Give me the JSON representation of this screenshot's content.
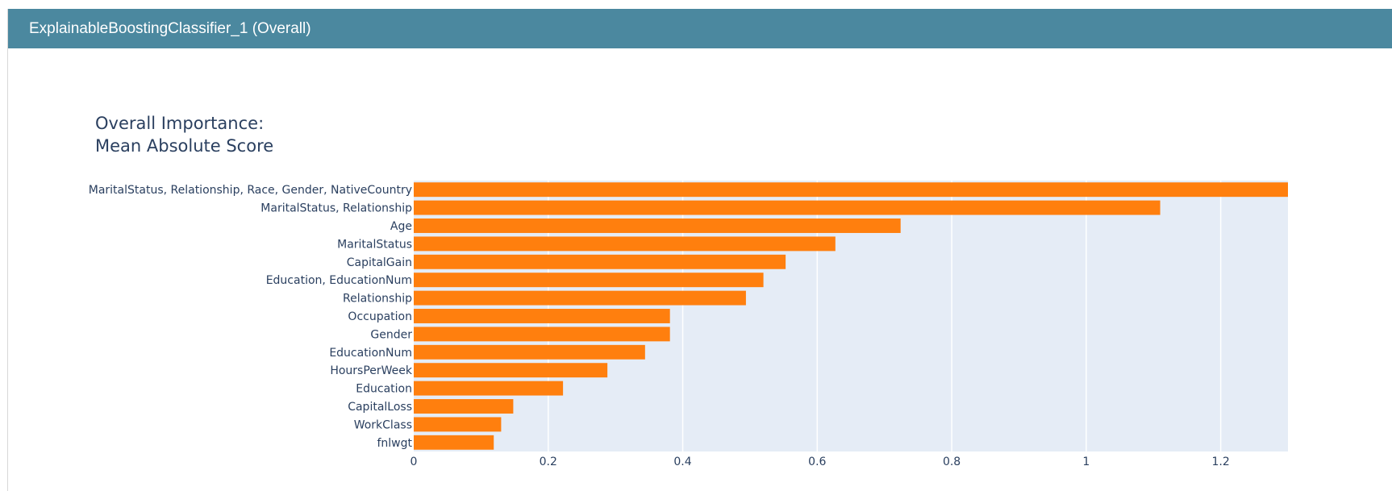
{
  "header": {
    "title": "ExplainableBoostingClassifier_1 (Overall)"
  },
  "colors": {
    "header_bg": "#4b889f",
    "bar": "#ff7f0e",
    "plot_bg": "#e5ecf6",
    "text": "#2a3f5f"
  },
  "chart_data": {
    "type": "bar",
    "orientation": "horizontal",
    "title": [
      "Overall Importance:",
      "Mean Absolute Score"
    ],
    "xlabel": "",
    "ylabel": "",
    "xlim": [
      0,
      1.3
    ],
    "xticks": [
      0,
      0.2,
      0.4,
      0.6,
      0.8,
      1,
      1.2
    ],
    "xtick_labels": [
      "0",
      "0.2",
      "0.4",
      "0.6",
      "0.8",
      "1",
      "1.2"
    ],
    "grid": true,
    "categories": [
      "MaritalStatus, Relationship, Race, Gender, NativeCountry",
      "MaritalStatus, Relationship",
      "Age",
      "MaritalStatus",
      "CapitalGain",
      "Education, EducationNum",
      "Relationship",
      "Occupation",
      "Gender",
      "EducationNum",
      "HoursPerWeek",
      "Education",
      "CapitalLoss",
      "WorkClass",
      "fnlwgt"
    ],
    "values": [
      1.3,
      1.11,
      0.724,
      0.627,
      0.553,
      0.52,
      0.494,
      0.381,
      0.381,
      0.344,
      0.288,
      0.222,
      0.148,
      0.13,
      0.119
    ]
  }
}
